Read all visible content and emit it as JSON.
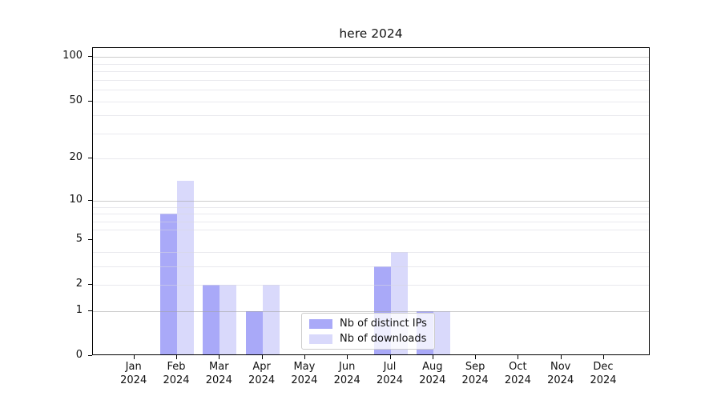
{
  "title": "here 2024",
  "colors": {
    "series_dark": "#a9a9f8",
    "series_light": "#d9d9fb",
    "grid_major": "#cccccc",
    "grid_minor": "#ededf2",
    "axis": "#000000",
    "legend_border": "#cccccc"
  },
  "legend": {
    "items": [
      {
        "label": "Nb of distinct IPs",
        "color": "#a9a9f8"
      },
      {
        "label": "Nb of downloads",
        "color": "#d9d9fb"
      }
    ]
  },
  "chart_data": {
    "type": "bar",
    "title": "here 2024",
    "categories": [
      "Jan 2024",
      "Feb 2024",
      "Mar 2024",
      "Apr 2024",
      "May 2024",
      "Jun 2024",
      "Jul 2024",
      "Aug 2024",
      "Sep 2024",
      "Oct 2024",
      "Nov 2024",
      "Dec 2024"
    ],
    "series": [
      {
        "name": "Nb of distinct IPs",
        "color": "#a9a9f8",
        "values": [
          0,
          8,
          2,
          1,
          0,
          0,
          3,
          1,
          0,
          0,
          0,
          0
        ]
      },
      {
        "name": "Nb of downloads",
        "color": "#d9d9fb",
        "values": [
          0,
          14,
          2,
          2,
          0,
          0,
          4,
          1,
          0,
          0,
          0,
          0
        ]
      }
    ],
    "xlabel": "",
    "ylabel": "",
    "yscale": "log1p",
    "ylim": [
      0,
      115
    ],
    "yticks": [
      0,
      1,
      2,
      5,
      10,
      20,
      50,
      100
    ],
    "ytick_labels": [
      "0",
      "1",
      "2",
      "5",
      "10",
      "20",
      "50",
      "100"
    ],
    "grid": true,
    "grid_major_values": [
      1,
      10,
      100
    ],
    "grid_minor_values": [
      2,
      3,
      4,
      6,
      7,
      8,
      9,
      20,
      30,
      40,
      50,
      60,
      70,
      80,
      90
    ],
    "legend_position": "lower center"
  }
}
